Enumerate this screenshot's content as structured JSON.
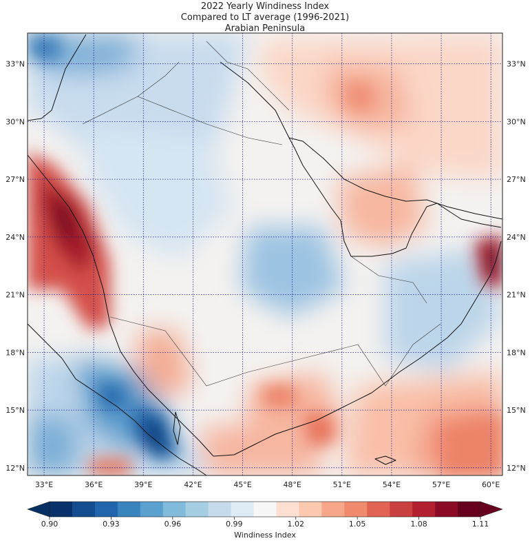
{
  "title": {
    "line1": "2022 Yearly Windiness Index",
    "line2": "Compared to LT average (1996-2021)",
    "line3": "Arabian Peninsula"
  },
  "map": {
    "type": "heatmap",
    "lon_range": [
      32.0,
      60.7
    ],
    "lat_range": [
      11.6,
      34.6
    ],
    "lon_ticks": [
      "33°E",
      "36°E",
      "39°E",
      "42°E",
      "45°E",
      "48°E",
      "51°E",
      "54°E",
      "57°E",
      "60°E"
    ],
    "lon_values": [
      33,
      36,
      39,
      42,
      45,
      48,
      51,
      54,
      57,
      60
    ],
    "lat_ticks": [
      "12°N",
      "15°N",
      "18°N",
      "21°N",
      "24°N",
      "27°N",
      "30°N",
      "33°N"
    ],
    "lat_values": [
      12,
      15,
      18,
      21,
      24,
      27,
      30,
      33
    ],
    "grid_color": "#1a1a8c"
  },
  "colorbar": {
    "label": "Windiness Index",
    "tick_labels": [
      "0.90",
      "0.93",
      "0.96",
      "0.99",
      "1.02",
      "1.05",
      "1.08",
      "1.11"
    ],
    "colors": [
      "#08306b",
      "#134c8f",
      "#2166ac",
      "#3a84bd",
      "#5aa1cf",
      "#82bbdc",
      "#a6cee3",
      "#c6dcec",
      "#deebf4",
      "#f7f7f7",
      "#fde0d2",
      "#fbc8b0",
      "#f7a68a",
      "#ef8a6e",
      "#e06353",
      "#c8403f",
      "#b0202e",
      "#8b0a26",
      "#67001f"
    ],
    "under_color": "#053061",
    "over_color": "#67001f"
  }
}
